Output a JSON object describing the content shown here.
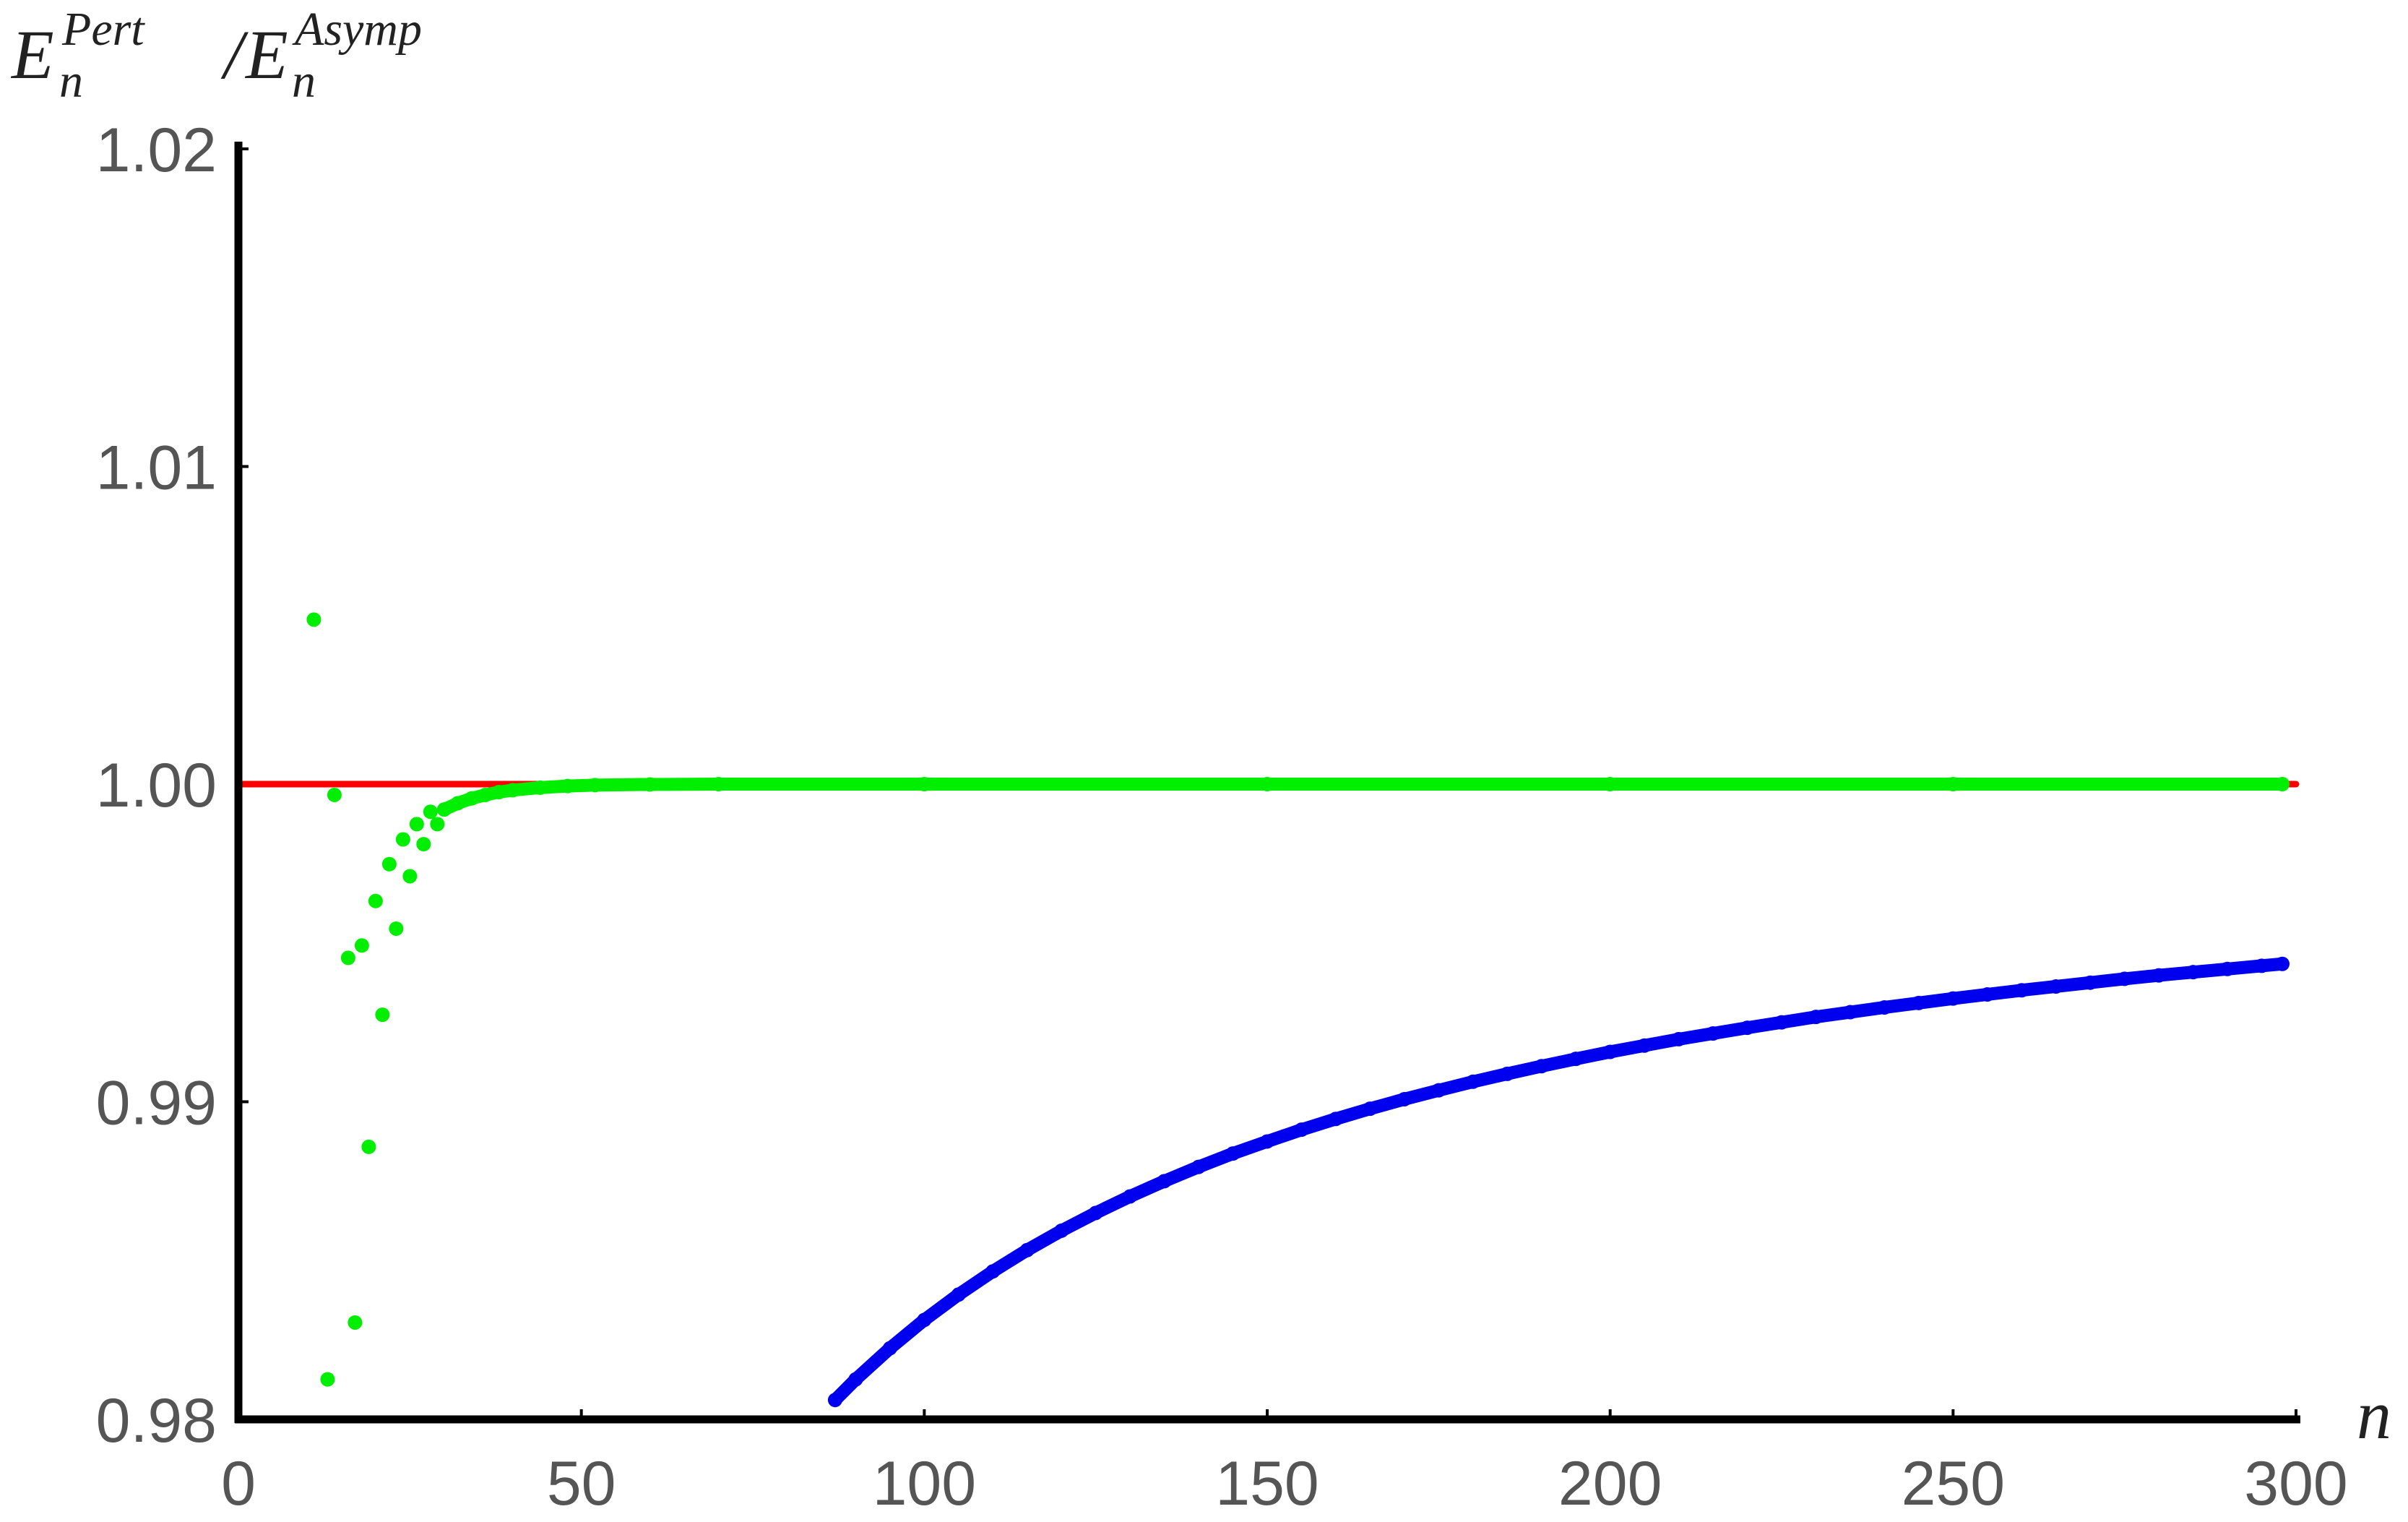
{
  "chart_data": {
    "type": "scatter",
    "ylabel": {
      "base": "E",
      "sub": "n",
      "sup": "Pert",
      "separator": "/",
      "base2": "E",
      "sub2": "n",
      "sup2": "Asymp"
    },
    "xlabel": "n",
    "xlim": [
      0,
      300
    ],
    "xticks": [
      0,
      50,
      100,
      150,
      200,
      250,
      300
    ],
    "ylim": [
      0.98,
      1.02
    ],
    "yticks": [
      {
        "value": 0.98,
        "label": "0.98"
      },
      {
        "value": 0.99,
        "label": "0.99"
      },
      {
        "value": 1.0,
        "label": "1.00"
      },
      {
        "value": 1.01,
        "label": "1.01"
      },
      {
        "value": 1.02,
        "label": "1.02"
      }
    ],
    "series": [
      {
        "color": "#ff0000",
        "style": "line",
        "x": [
          0,
          300
        ],
        "values": [
          1.0,
          1.0
        ]
      },
      {
        "color": "#00ee00",
        "style": "markers",
        "x": [
          11,
          13,
          14,
          16,
          17,
          18,
          19,
          20,
          21,
          22,
          23,
          24,
          25,
          26,
          27,
          28,
          29
        ],
        "values": [
          1.00518,
          0.98126,
          0.99966,
          0.99453,
          0.98305,
          0.99492,
          0.98858,
          0.99632,
          0.99274,
          0.99748,
          0.99545,
          0.99826,
          0.9971,
          0.99874,
          0.99811,
          0.99913,
          0.99874
        ]
      },
      {
        "color": "#00ee00",
        "style": "line+markers",
        "x": [
          30,
          32,
          34,
          36,
          38,
          40,
          44,
          48,
          52,
          60,
          70,
          100,
          150,
          200,
          250,
          298
        ],
        "values": [
          0.9992,
          0.9994,
          0.99955,
          0.99966,
          0.99975,
          0.99981,
          0.99989,
          0.99994,
          0.99997,
          0.99999,
          1.0,
          1.0,
          1.0,
          1.0,
          1.0,
          1.0
        ]
      },
      {
        "color": "#0000ee",
        "style": "line+markers",
        "x": [
          87,
          90,
          95,
          100,
          105,
          110,
          115,
          120,
          125,
          130,
          135,
          140,
          145,
          150,
          155,
          160,
          165,
          170,
          175,
          180,
          185,
          190,
          195,
          200,
          205,
          210,
          215,
          220,
          225,
          230,
          235,
          240,
          245,
          250,
          255,
          260,
          265,
          270,
          275,
          280,
          285,
          290,
          295,
          298
        ],
        "values": [
          0.98061,
          0.98126,
          0.98224,
          0.98313,
          0.98393,
          0.98466,
          0.98533,
          0.98594,
          0.9865,
          0.98702,
          0.9875,
          0.98795,
          0.98837,
          0.98875,
          0.98912,
          0.98946,
          0.98978,
          0.99008,
          0.99036,
          0.99063,
          0.99088,
          0.99112,
          0.99135,
          0.99157,
          0.99177,
          0.99197,
          0.99215,
          0.99233,
          0.9925,
          0.99267,
          0.99282,
          0.99297,
          0.99311,
          0.99325,
          0.99338,
          0.99351,
          0.99363,
          0.99375,
          0.99387,
          0.99398,
          0.99408,
          0.99418,
          0.99428,
          0.99434
        ]
      }
    ]
  }
}
